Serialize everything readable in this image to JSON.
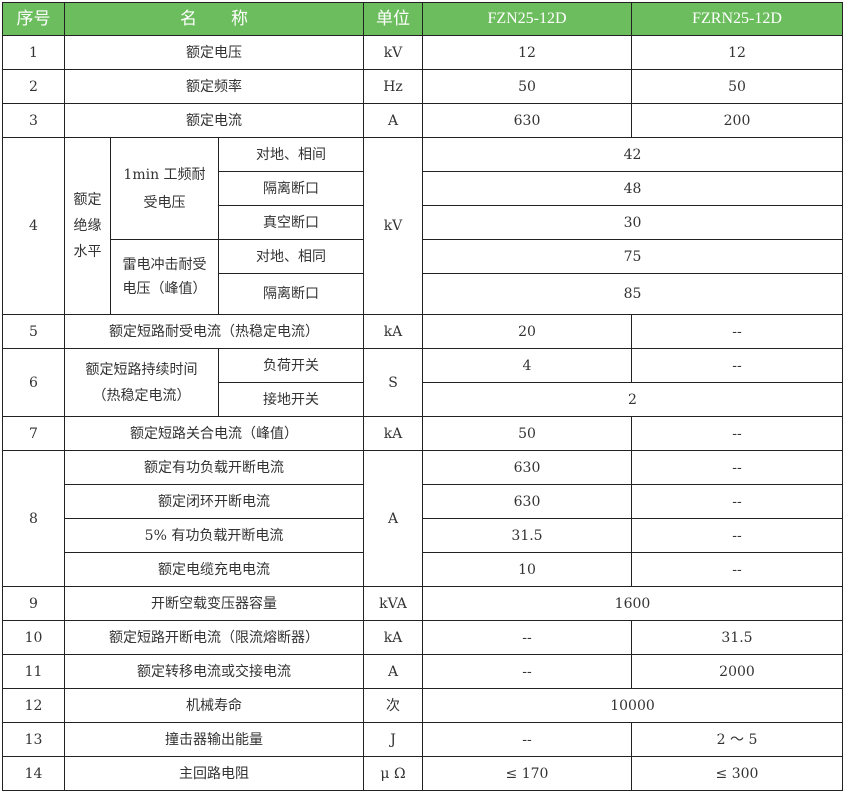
{
  "header": {
    "no": "序号",
    "name": "名　　称",
    "unit": "单位",
    "model1": "FZN25-12D",
    "model2": "FZRN25-12D"
  },
  "rows": {
    "r1": {
      "no": "1",
      "name": "额定电压",
      "unit": "kV",
      "v1": "12",
      "v2": "12"
    },
    "r2": {
      "no": "2",
      "name": "额定频率",
      "unit": "Hz",
      "v1": "50",
      "v2": "50"
    },
    "r3": {
      "no": "3",
      "name": "额定电流",
      "unit": "A",
      "v1": "630",
      "v2": "200"
    },
    "r4": {
      "no": "4",
      "name": "额定绝缘水平",
      "unit": "kV",
      "group1": "1min 工频耐受电压",
      "group2": "雷电冲击耐受电压（峰值）",
      "items": [
        {
          "label": "对地、相间",
          "value": "42"
        },
        {
          "label": "隔离断口",
          "value": "48"
        },
        {
          "label": "真空断口",
          "value": "30"
        },
        {
          "label": "对地、相同",
          "value": "75"
        },
        {
          "label": "隔离断口",
          "value": "85"
        }
      ]
    },
    "r5": {
      "no": "5",
      "name": "额定短路耐受电流（热稳定电流）",
      "unit": "kA",
      "v1": "20",
      "v2": "--"
    },
    "r6": {
      "no": "6",
      "name": "额定短路持续时间（热稳定电流）",
      "unit": "S",
      "sub1": "负荷开关",
      "sub1_v1": "4",
      "sub1_v2": "--",
      "sub2": "接地开关",
      "sub2_v": "2"
    },
    "r7": {
      "no": "7",
      "name": "额定短路关合电流（峰值）",
      "unit": "kA",
      "v1": "50",
      "v2": "--"
    },
    "r8": {
      "no": "8",
      "unit": "A",
      "items": [
        {
          "name": "额定有功负载开断电流",
          "v1": "630",
          "v2": "--"
        },
        {
          "name": "额定闭环开断电流",
          "v1": "630",
          "v2": "--"
        },
        {
          "name": "5% 有功负载开断电流",
          "v1": "31.5",
          "v2": "--"
        },
        {
          "name": "额定电缆充电电流",
          "v1": "10",
          "v2": "--"
        }
      ]
    },
    "r9": {
      "no": "9",
      "name": "开断空载变压器容量",
      "unit": "kVA",
      "v": "1600"
    },
    "r10": {
      "no": "10",
      "name": "额定短路开断电流（限流熔断器）",
      "unit": "kA",
      "v1": "--",
      "v2": "31.5"
    },
    "r11": {
      "no": "11",
      "name": "额定转移电流或交接电流",
      "unit": "A",
      "v1": "--",
      "v2": "2000"
    },
    "r12": {
      "no": "12",
      "name": "机械寿命",
      "unit": "次",
      "v": "10000"
    },
    "r13": {
      "no": "13",
      "name": "撞击器输出能量",
      "unit": "J",
      "v1": "--",
      "v2": "2 ～ 5"
    },
    "r14": {
      "no": "14",
      "name": "主回路电阻",
      "unit": "μ Ω",
      "v1": "≤ 170",
      "v2": "≤ 300"
    }
  },
  "colors": {
    "header_bg": "#6cbd5d",
    "header_text": "#ffffff",
    "border": "#222222"
  }
}
